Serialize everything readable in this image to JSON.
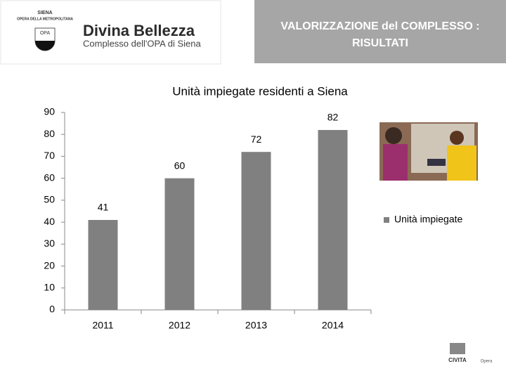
{
  "header": {
    "logo_city": "SIENA",
    "logo_org": "OPERA DELLA METROPOLITANA",
    "logo_badge": "OPA",
    "brand": "Divina Bellezza",
    "brand_sub": "Complesso dell'OPA di Siena",
    "title_line1": "VALORIZZAZIONE del COMPLESSO :",
    "title_line2": "RISULTATI"
  },
  "footer": {
    "logo": "CIVITA",
    "tag": "Opera"
  },
  "chart_data": {
    "type": "bar",
    "title": "Unità impiegate residenti a Siena",
    "categories": [
      "2011",
      "2012",
      "2013",
      "2014"
    ],
    "series": [
      {
        "name": "Unità impiegate",
        "color": "#808080",
        "values": [
          41,
          60,
          72,
          82
        ]
      }
    ],
    "ylim": [
      0,
      90
    ],
    "yticks": [
      0,
      10,
      20,
      30,
      40,
      50,
      60,
      70,
      80,
      90
    ],
    "grid": false,
    "legend": "right"
  }
}
